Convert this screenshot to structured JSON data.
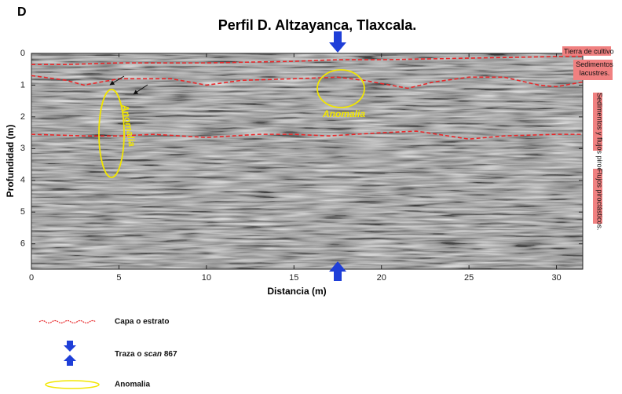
{
  "chart_data": {
    "type": "radargram",
    "panel_label": "D",
    "title": "Perfil D. Altzayanca, Tlaxcala.",
    "x_label": "Distancia (m)",
    "y_label": "Profundidad (m)",
    "xlim": [
      0,
      31.5
    ],
    "ylim": [
      0,
      6.8
    ],
    "y_inverted": true,
    "xticks": [
      0,
      5,
      10,
      15,
      20,
      25,
      30
    ],
    "yticks": [
      0,
      1,
      2,
      3,
      4,
      5,
      6
    ],
    "layer_color": "#e8282a",
    "layers": [
      {
        "x": [
          0,
          2,
          5,
          10,
          15,
          17.5,
          20,
          25,
          30,
          31.5
        ],
        "values": [
          0.35,
          0.35,
          0.3,
          0.3,
          0.25,
          0.2,
          0.2,
          0.15,
          0.1,
          0.1
        ]
      },
      {
        "x": [
          0,
          2,
          3,
          5,
          8,
          10,
          12,
          15,
          17.5,
          19,
          20,
          21.5,
          23,
          25,
          27,
          29,
          30,
          31.5
        ],
        "values": [
          0.7,
          0.85,
          1.0,
          0.8,
          0.8,
          1.0,
          0.85,
          0.8,
          0.75,
          0.85,
          0.95,
          1.1,
          0.9,
          0.75,
          0.75,
          1.0,
          1.05,
          0.9
        ]
      },
      {
        "x": [
          0,
          3,
          5,
          7,
          10,
          13,
          15,
          17,
          20,
          22,
          25,
          27,
          30,
          31.5
        ],
        "values": [
          2.55,
          2.6,
          2.6,
          2.55,
          2.65,
          2.55,
          2.55,
          2.6,
          2.5,
          2.45,
          2.7,
          2.6,
          2.55,
          2.55
        ]
      }
    ],
    "annotations": [
      "Anomalia",
      "Anomalia"
    ],
    "side_labels": [
      "Tierra de cultivo",
      "Sedimentos lacustres.",
      "Sedimentos y flujos piroclásticos.",
      "Flujos piroclásticos."
    ],
    "legend": [
      {
        "label": "Capa o estrato"
      },
      {
        "label_parts": [
          "Traza o ",
          "scan",
          " 867"
        ]
      },
      {
        "label": "Anomalia"
      }
    ]
  }
}
